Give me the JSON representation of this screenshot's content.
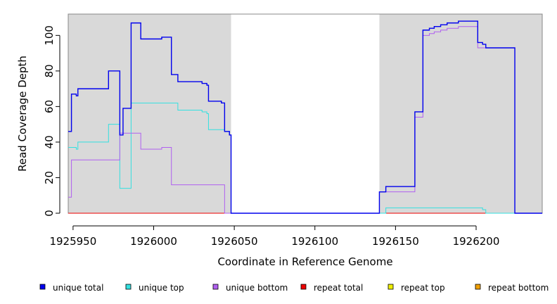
{
  "chart_data": {
    "type": "line",
    "xlabel": "Coordinate in Reference Genome",
    "ylabel": "Read Coverage Depth",
    "xlim": [
      1925947,
      1926241
    ],
    "ylim": [
      0,
      112
    ],
    "x_ticks": [
      1925950,
      1926000,
      1926050,
      1926100,
      1926150,
      1926200
    ],
    "x_tick_labels": [
      "1925950",
      "1926000",
      "1926050",
      "1926100",
      "1926150",
      "1926200"
    ],
    "y_ticks": [
      0,
      20,
      40,
      60,
      80,
      100
    ],
    "y_tick_labels": [
      "0",
      "20",
      "40",
      "60",
      "80",
      "100"
    ],
    "shaded_regions": [
      [
        1925947,
        1926048
      ],
      [
        1926140,
        1926241
      ]
    ],
    "shade_color": "#d9d9d9",
    "grid": false,
    "legend_position": "bottom",
    "series": [
      {
        "name": "unique total",
        "color": "#0000ee",
        "points": [
          [
            1925947,
            46
          ],
          [
            1925949,
            46
          ],
          [
            1925949,
            67
          ],
          [
            1925952,
            67
          ],
          [
            1925952,
            66
          ],
          [
            1925953,
            66
          ],
          [
            1925953,
            70
          ],
          [
            1925972,
            70
          ],
          [
            1925972,
            80
          ],
          [
            1925979,
            80
          ],
          [
            1925979,
            44
          ],
          [
            1925981,
            44
          ],
          [
            1925981,
            59
          ],
          [
            1925986,
            59
          ],
          [
            1925986,
            107
          ],
          [
            1925992,
            107
          ],
          [
            1925992,
            98
          ],
          [
            1926005,
            98
          ],
          [
            1926005,
            99
          ],
          [
            1926011,
            99
          ],
          [
            1926011,
            78
          ],
          [
            1926015,
            78
          ],
          [
            1926015,
            74
          ],
          [
            1926030,
            74
          ],
          [
            1926030,
            73
          ],
          [
            1926033,
            73
          ],
          [
            1926033,
            72
          ],
          [
            1926034,
            72
          ],
          [
            1926034,
            63
          ],
          [
            1926042,
            63
          ],
          [
            1926042,
            62
          ],
          [
            1926044,
            62
          ],
          [
            1926044,
            46
          ],
          [
            1926047,
            46
          ],
          [
            1926047,
            44
          ],
          [
            1926048,
            44
          ],
          [
            1926048,
            0
          ],
          [
            1926140,
            0
          ],
          [
            1926140,
            12
          ],
          [
            1926144,
            12
          ],
          [
            1926144,
            15
          ],
          [
            1926162,
            15
          ],
          [
            1926162,
            57
          ],
          [
            1926167,
            57
          ],
          [
            1926167,
            103
          ],
          [
            1926171,
            103
          ],
          [
            1926171,
            104
          ],
          [
            1926174,
            104
          ],
          [
            1926174,
            105
          ],
          [
            1926178,
            105
          ],
          [
            1926178,
            106
          ],
          [
            1926182,
            106
          ],
          [
            1926182,
            107
          ],
          [
            1926189,
            107
          ],
          [
            1926189,
            108
          ],
          [
            1926201,
            108
          ],
          [
            1926201,
            96
          ],
          [
            1926204,
            96
          ],
          [
            1926204,
            95
          ],
          [
            1926206,
            95
          ],
          [
            1926206,
            93
          ],
          [
            1926224,
            93
          ],
          [
            1926224,
            0
          ],
          [
            1926241,
            0
          ]
        ]
      },
      {
        "name": "unique top",
        "color": "#33e0e0",
        "points": [
          [
            1925947,
            37
          ],
          [
            1925952,
            37
          ],
          [
            1925952,
            36
          ],
          [
            1925953,
            36
          ],
          [
            1925953,
            40
          ],
          [
            1925972,
            40
          ],
          [
            1925972,
            50
          ],
          [
            1925979,
            50
          ],
          [
            1925979,
            14
          ],
          [
            1925986,
            14
          ],
          [
            1925986,
            62
          ],
          [
            1926015,
            62
          ],
          [
            1926015,
            58
          ],
          [
            1926030,
            58
          ],
          [
            1926030,
            57
          ],
          [
            1926033,
            57
          ],
          [
            1926033,
            56
          ],
          [
            1926034,
            56
          ],
          [
            1926034,
            47
          ],
          [
            1926044,
            47
          ],
          [
            1926044,
            46
          ],
          [
            1926047,
            46
          ],
          [
            1926047,
            44
          ],
          [
            1926048,
            44
          ],
          [
            1926048,
            0
          ],
          [
            1926144,
            0
          ],
          [
            1926144,
            3
          ],
          [
            1926204,
            3
          ],
          [
            1926204,
            2
          ],
          [
            1926206,
            2
          ],
          [
            1926206,
            0
          ],
          [
            1926241,
            0
          ]
        ]
      },
      {
        "name": "unique bottom",
        "color": "#b060f0",
        "points": [
          [
            1925947,
            9
          ],
          [
            1925949,
            9
          ],
          [
            1925949,
            30
          ],
          [
            1925979,
            30
          ],
          [
            1925979,
            45
          ],
          [
            1925992,
            45
          ],
          [
            1925992,
            36
          ],
          [
            1926005,
            36
          ],
          [
            1926005,
            37
          ],
          [
            1926011,
            37
          ],
          [
            1926011,
            16
          ],
          [
            1926044,
            16
          ],
          [
            1926044,
            0
          ],
          [
            1926140,
            0
          ],
          [
            1926140,
            12
          ],
          [
            1926162,
            12
          ],
          [
            1926162,
            54
          ],
          [
            1926167,
            54
          ],
          [
            1926167,
            100
          ],
          [
            1926171,
            100
          ],
          [
            1926171,
            101
          ],
          [
            1926174,
            101
          ],
          [
            1926174,
            102
          ],
          [
            1926178,
            102
          ],
          [
            1926178,
            103
          ],
          [
            1926182,
            103
          ],
          [
            1926182,
            104
          ],
          [
            1926189,
            104
          ],
          [
            1926189,
            105
          ],
          [
            1926201,
            105
          ],
          [
            1926201,
            93
          ],
          [
            1926224,
            93
          ],
          [
            1926224,
            0
          ],
          [
            1926241,
            0
          ]
        ]
      },
      {
        "name": "repeat total",
        "color": "#ee0000",
        "points": [
          [
            1925947,
            0
          ],
          [
            1926241,
            0
          ]
        ]
      },
      {
        "name": "repeat top",
        "color": "#eeee00",
        "points": [
          [
            1925947,
            0
          ],
          [
            1926241,
            0
          ]
        ]
      },
      {
        "name": "repeat bottom",
        "color": "#f0a000",
        "points": [
          [
            1925947,
            0
          ],
          [
            1926241,
            0
          ]
        ]
      }
    ]
  }
}
